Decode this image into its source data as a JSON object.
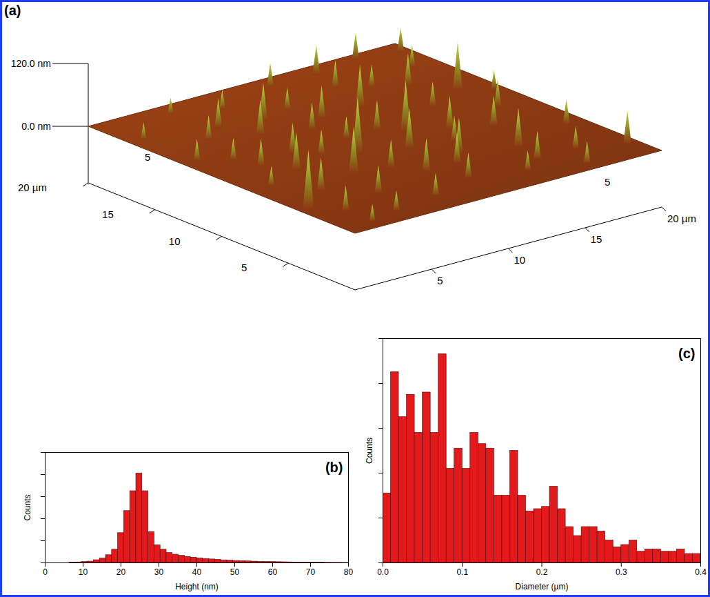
{
  "chart_data": [
    {
      "type": "surface",
      "panel": "(a)",
      "color": "#8b3a12",
      "xlim": [
        0,
        20
      ],
      "xticks": [
        5,
        10,
        15,
        {
          "value": 20,
          "label": "20 µm"
        }
      ],
      "xticks_back": [
        5
      ],
      "ylim": [
        0,
        20
      ],
      "yticks": [
        5,
        10,
        15,
        {
          "value": 20,
          "label": "20 µm"
        }
      ],
      "yticks_back": [
        5
      ],
      "zlim": [
        0,
        120
      ],
      "zticks": [
        {
          "value": 0,
          "label": "0.0 nm"
        },
        {
          "value": 120,
          "label": "120.0 nm"
        }
      ],
      "peaks": {
        "x": [
          2,
          3,
          1.5,
          4,
          2.5,
          5,
          6,
          7,
          5.5,
          3.5,
          1,
          6,
          8,
          9,
          8.5,
          10,
          10.5,
          11,
          9.5,
          12,
          12.5,
          13,
          14,
          13.5,
          15,
          15.5,
          16,
          17,
          16.5,
          18,
          19,
          18.5,
          7,
          11,
          4.5,
          14,
          17,
          19.5,
          2,
          0.7,
          12,
          6.5,
          9,
          3,
          10,
          15,
          8,
          13,
          5,
          18,
          19.5,
          16,
          11,
          4,
          7.5,
          14.5,
          1,
          19.5
        ],
        "y": [
          3,
          6,
          8,
          9,
          12,
          4,
          7,
          2,
          11,
          15,
          17,
          14,
          9,
          5,
          13,
          3,
          8,
          11,
          16,
          6,
          14,
          2,
          9,
          17,
          5,
          12,
          8,
          3,
          15,
          10,
          6,
          17,
          18,
          19,
          19,
          19,
          19.5,
          12,
          1,
          4.3,
          10,
          10,
          11,
          10.5,
          14,
          16,
          6.5,
          7.5,
          16,
          13,
          19,
          1,
          5,
          1.5,
          15.5,
          3,
          13,
          2
        ],
        "height": [
          45,
          60,
          35,
          70,
          40,
          50,
          85,
          40,
          55,
          45,
          30,
          65,
          105,
          60,
          50,
          45,
          75,
          55,
          40,
          65,
          80,
          35,
          60,
          50,
          70,
          45,
          55,
          40,
          60,
          50,
          45,
          40,
          35,
          45,
          30,
          55,
          50,
          35,
          30,
          110,
          95,
          45,
          40,
          50,
          60,
          40,
          50,
          45,
          55,
          90,
          45,
          40,
          55,
          35,
          70,
          50,
          40,
          60
        ]
      }
    },
    {
      "type": "histogram",
      "panel": "(b)",
      "x_label": "Height (nm)",
      "y_label": "Counts",
      "color": "#e31a1c",
      "bins": [
        0,
        1.6,
        3.2,
        4.8,
        6.4,
        8,
        9.6,
        11.2,
        12.8,
        14.4,
        16,
        17.6,
        19.2,
        20.8,
        22.4,
        24,
        25.6,
        27.2,
        28.8,
        30.4,
        32,
        33.6,
        35.2,
        36.8,
        38.4,
        40,
        41.6,
        43.2,
        44.8,
        46.4,
        48,
        49.6,
        51.2,
        52.8,
        54.4,
        56,
        57.6,
        59.2,
        60.8,
        62.4,
        64,
        65.6,
        67.2,
        68.8,
        70.4,
        72,
        73.6,
        75.2,
        76.8,
        78.4,
        80
      ],
      "counts": [
        0,
        0,
        0,
        0,
        0.3,
        0.5,
        0.8,
        1.2,
        2.5,
        4,
        7,
        12,
        27,
        47,
        65,
        81,
        65,
        28,
        16,
        12,
        9,
        7.5,
        6.5,
        5.5,
        4.8,
        4.2,
        3.6,
        3.2,
        2.8,
        2.4,
        2.1,
        1.8,
        1.6,
        1.4,
        1.2,
        1,
        0.9,
        0.8,
        0.7,
        0.6,
        0.5,
        0.4,
        0.35,
        0.3,
        0.25,
        0.2,
        0.15,
        0.1,
        0.1,
        0.05
      ],
      "xlim": [
        0,
        80
      ],
      "xticks": [
        0,
        10,
        20,
        30,
        40,
        50,
        60,
        70,
        80
      ],
      "ylim": [
        0,
        100
      ],
      "yticks": [
        0,
        20,
        40,
        60,
        80,
        100
      ],
      "tick_labels": "x"
    },
    {
      "type": "histogram",
      "panel": "(c)",
      "x_label": "Diameter (µm)",
      "y_label": "Counts",
      "color": "#e31a1c",
      "bins": [
        0,
        0.01,
        0.02,
        0.03,
        0.04,
        0.05,
        0.06,
        0.07,
        0.08,
        0.09,
        0.1,
        0.11,
        0.12,
        0.13,
        0.14,
        0.15,
        0.16,
        0.17,
        0.18,
        0.19,
        0.2,
        0.21,
        0.22,
        0.23,
        0.24,
        0.25,
        0.26,
        0.27,
        0.28,
        0.29,
        0.3,
        0.31,
        0.32,
        0.33,
        0.34,
        0.35,
        0.36,
        0.37,
        0.38,
        0.39,
        0.4
      ],
      "counts": [
        31,
        85,
        65,
        75,
        58,
        76,
        58,
        93,
        42,
        51,
        42,
        58,
        53,
        51,
        30,
        30,
        50,
        30,
        23,
        24,
        25,
        34,
        24,
        16,
        12,
        16,
        16,
        14,
        10,
        7,
        8,
        10,
        5,
        6,
        6,
        5,
        5,
        6,
        4,
        4
      ],
      "xlim": [
        0,
        0.4
      ],
      "xticks": [
        {
          "value": 0,
          "label": "0.0"
        },
        0.1,
        0.2,
        0.3,
        0.4
      ],
      "ylim": [
        0,
        100
      ],
      "yticks": [
        0,
        20,
        40,
        60,
        80,
        100
      ],
      "tick_labels": "x"
    }
  ]
}
